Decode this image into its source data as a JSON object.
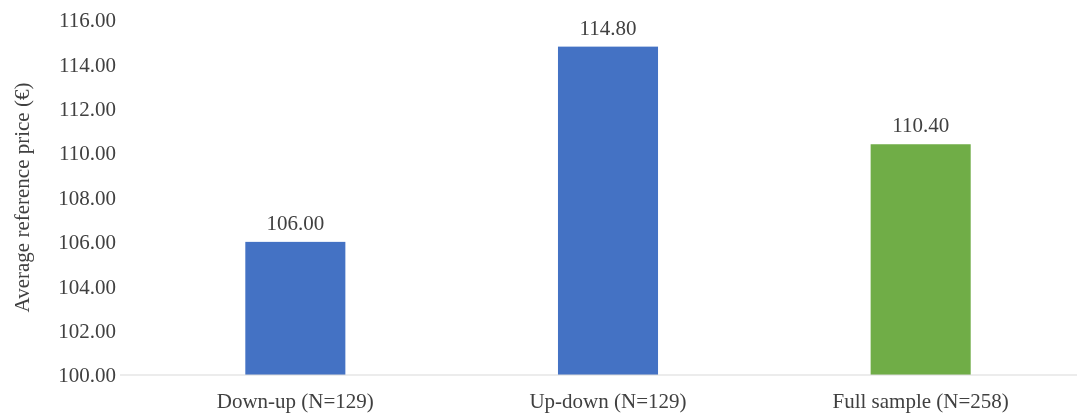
{
  "chart_data": {
    "type": "bar",
    "ylabel": "Average reference price (€)",
    "categories": [
      "Down-up (N=129)",
      "Up-down (N=129)",
      "Full sample (N=258)"
    ],
    "values": [
      106.0,
      114.8,
      110.4
    ],
    "colors": [
      "#4472c4",
      "#4472c4",
      "#70ad47"
    ],
    "ylim": [
      100,
      116
    ],
    "yticks": [
      {
        "value": 100,
        "label": "100.00"
      },
      {
        "value": 102,
        "label": "102.00"
      },
      {
        "value": 104,
        "label": "104.00"
      },
      {
        "value": 106,
        "label": "106.00"
      },
      {
        "value": 108,
        "label": "108.00"
      },
      {
        "value": 110,
        "label": "110.00"
      },
      {
        "value": 112,
        "label": "112.00"
      },
      {
        "value": 114,
        "label": "114.00"
      },
      {
        "value": 116,
        "label": "116.00"
      }
    ],
    "value_labels": [
      "106.00",
      "114.80",
      "110.40"
    ]
  }
}
